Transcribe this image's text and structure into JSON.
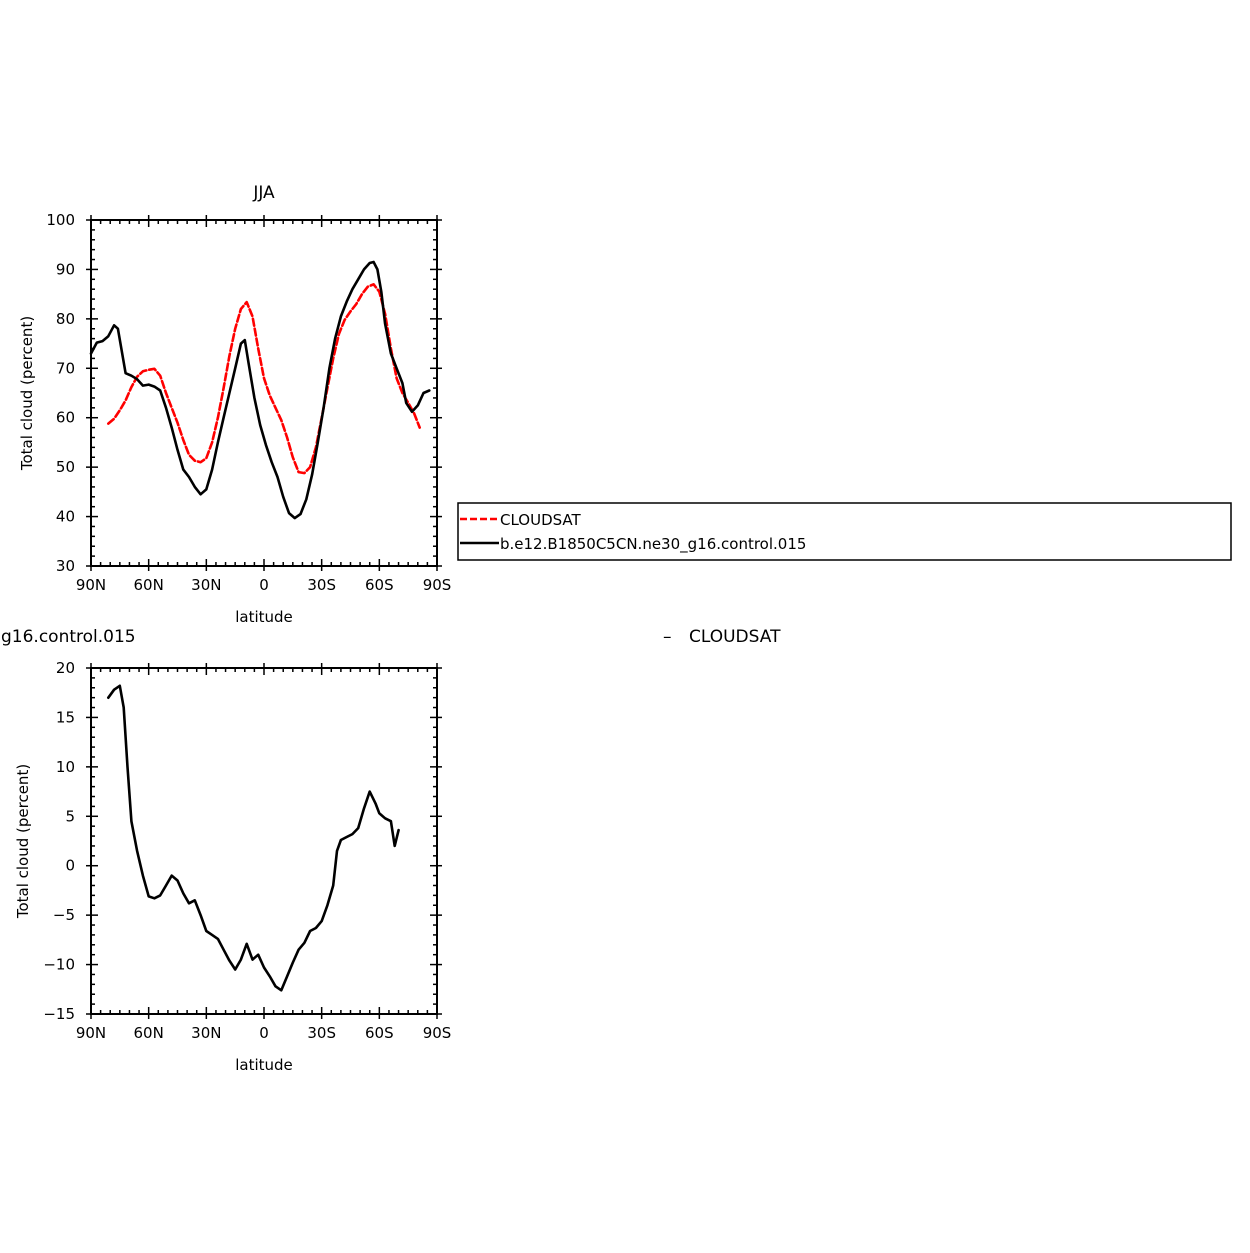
{
  "chart_data": [
    {
      "type": "line",
      "title": "JJA",
      "xlabel": "latitude",
      "ylabel": "Total cloud (percent)",
      "xlim": [
        -90,
        90
      ],
      "ylim": [
        30,
        100
      ],
      "x_ticks": [
        -90,
        -60,
        -30,
        0,
        30,
        60,
        90
      ],
      "x_tick_labels": [
        "90N",
        "60N",
        "30N",
        "0",
        "30S",
        "60S",
        "90S"
      ],
      "y_ticks": [
        30,
        40,
        50,
        60,
        70,
        80,
        90,
        100
      ],
      "y_tick_labels": [
        "30",
        "40",
        "50",
        "60",
        "70",
        "80",
        "90",
        "100"
      ],
      "legend_position": "right, outside plot",
      "series": [
        {
          "name": "CLOUDSAT",
          "color": "#ff0000",
          "dash": "dashed",
          "points": [
            [
              -81,
              58.8
            ],
            [
              -78,
              59.8
            ],
            [
              -75,
              61.5
            ],
            [
              -72,
              63.5
            ],
            [
              -69,
              66.2
            ],
            [
              -66,
              68.3
            ],
            [
              -63,
              69.4
            ],
            [
              -60,
              69.7
            ],
            [
              -57,
              69.9
            ],
            [
              -54,
              68.5
            ],
            [
              -51,
              65.0
            ],
            [
              -48,
              62.0
            ],
            [
              -45,
              59.0
            ],
            [
              -42,
              55.5
            ],
            [
              -39,
              52.5
            ],
            [
              -36,
              51.3
            ],
            [
              -33,
              51.0
            ],
            [
              -30,
              51.8
            ],
            [
              -27,
              55.0
            ],
            [
              -24,
              60.0
            ],
            [
              -21,
              66.0
            ],
            [
              -18,
              72.5
            ],
            [
              -15,
              78.0
            ],
            [
              -12,
              82.0
            ],
            [
              -9,
              83.4
            ],
            [
              -6,
              80.5
            ],
            [
              -3,
              74.0
            ],
            [
              0,
              68.0
            ],
            [
              3,
              64.5
            ],
            [
              6,
              62.0
            ],
            [
              9,
              59.5
            ],
            [
              12,
              56.0
            ],
            [
              15,
              52.0
            ],
            [
              18,
              49.0
            ],
            [
              21,
              48.8
            ],
            [
              24,
              50.0
            ],
            [
              27,
              54.0
            ],
            [
              30,
              60.0
            ],
            [
              33,
              66.0
            ],
            [
              36,
              72.0
            ],
            [
              39,
              77.0
            ],
            [
              42,
              79.8
            ],
            [
              45,
              81.5
            ],
            [
              48,
              83.0
            ],
            [
              51,
              85.0
            ],
            [
              54,
              86.5
            ],
            [
              57,
              87.0
            ],
            [
              60,
              85.5
            ],
            [
              63,
              81.0
            ],
            [
              66,
              74.0
            ],
            [
              69,
              68.0
            ],
            [
              72,
              65.0
            ],
            [
              75,
              63.0
            ],
            [
              78,
              61.0
            ],
            [
              81,
              58.0
            ]
          ]
        },
        {
          "name": "b.e12.B1850C5CN.ne30_g16.control.015",
          "color": "#000000",
          "dash": "solid",
          "points": [
            [
              -90,
              73.0
            ],
            [
              -87,
              75.2
            ],
            [
              -84,
              75.5
            ],
            [
              -81,
              76.5
            ],
            [
              -78,
              78.7
            ],
            [
              -76,
              78.0
            ],
            [
              -72,
              69.0
            ],
            [
              -69,
              68.5
            ],
            [
              -66,
              67.8
            ],
            [
              -63,
              66.5
            ],
            [
              -60,
              66.7
            ],
            [
              -57,
              66.3
            ],
            [
              -54,
              65.5
            ],
            [
              -51,
              62.0
            ],
            [
              -48,
              58.0
            ],
            [
              -45,
              53.5
            ],
            [
              -42,
              49.5
            ],
            [
              -39,
              48.0
            ],
            [
              -36,
              46.0
            ],
            [
              -33,
              44.5
            ],
            [
              -30,
              45.5
            ],
            [
              -27,
              49.5
            ],
            [
              -24,
              55.0
            ],
            [
              -21,
              60.0
            ],
            [
              -18,
              65.0
            ],
            [
              -15,
              70.0
            ],
            [
              -12,
              75.0
            ],
            [
              -10,
              75.7
            ],
            [
              -8,
              71.0
            ],
            [
              -5,
              64.0
            ],
            [
              -2,
              58.5
            ],
            [
              1,
              54.5
            ],
            [
              4,
              51.0
            ],
            [
              7,
              48.0
            ],
            [
              10,
              44.0
            ],
            [
              13,
              40.7
            ],
            [
              16,
              39.7
            ],
            [
              19,
              40.5
            ],
            [
              22,
              43.5
            ],
            [
              25,
              48.5
            ],
            [
              28,
              55.0
            ],
            [
              31,
              62.0
            ],
            [
              34,
              70.0
            ],
            [
              37,
              76.0
            ],
            [
              40,
              80.5
            ],
            [
              43,
              83.5
            ],
            [
              46,
              86.0
            ],
            [
              49,
              88.0
            ],
            [
              52,
              90.0
            ],
            [
              55,
              91.3
            ],
            [
              57,
              91.5
            ],
            [
              59,
              90.0
            ],
            [
              61,
              85.5
            ],
            [
              63,
              79.0
            ],
            [
              66,
              73.0
            ],
            [
              69,
              70.0
            ],
            [
              72,
              67.0
            ],
            [
              74,
              63.0
            ],
            [
              77,
              61.2
            ],
            [
              80,
              62.5
            ],
            [
              83,
              65.0
            ],
            [
              86,
              65.5
            ]
          ]
        }
      ]
    },
    {
      "type": "line",
      "title": "g16.control.015",
      "xlabel": "latitude",
      "ylabel": "Total cloud (percent)",
      "xlim": [
        -90,
        90
      ],
      "ylim": [
        -15,
        20
      ],
      "x_ticks": [
        -90,
        -60,
        -30,
        0,
        30,
        60,
        90
      ],
      "x_tick_labels": [
        "90N",
        "60N",
        "30N",
        "0",
        "30S",
        "60S",
        "90S"
      ],
      "y_ticks": [
        -15,
        -10,
        -5,
        0,
        5,
        10,
        15,
        20
      ],
      "y_tick_labels": [
        "−15",
        "−10",
        "−5",
        "0",
        "5",
        "10",
        "15",
        "20"
      ],
      "series": [
        {
          "color": "#000000",
          "dash": "solid",
          "points": [
            [
              -81,
              17.0
            ],
            [
              -78,
              17.8
            ],
            [
              -75,
              18.2
            ],
            [
              -73,
              16.0
            ],
            [
              -71,
              10.0
            ],
            [
              -69,
              4.5
            ],
            [
              -66,
              1.5
            ],
            [
              -63,
              -1.0
            ],
            [
              -60,
              -3.1
            ],
            [
              -57,
              -3.3
            ],
            [
              -54,
              -3.0
            ],
            [
              -51,
              -2.0
            ],
            [
              -48,
              -1.0
            ],
            [
              -45,
              -1.5
            ],
            [
              -42,
              -2.8
            ],
            [
              -39,
              -3.8
            ],
            [
              -36,
              -3.5
            ],
            [
              -33,
              -5.0
            ],
            [
              -30,
              -6.6
            ],
            [
              -27,
              -7.0
            ],
            [
              -24,
              -7.4
            ],
            [
              -21,
              -8.5
            ],
            [
              -18,
              -9.6
            ],
            [
              -15,
              -10.5
            ],
            [
              -12,
              -9.5
            ],
            [
              -9,
              -7.9
            ],
            [
              -6,
              -9.5
            ],
            [
              -3,
              -9.0
            ],
            [
              0,
              -10.3
            ],
            [
              3,
              -11.2
            ],
            [
              6,
              -12.2
            ],
            [
              9,
              -12.6
            ],
            [
              12,
              -11.2
            ],
            [
              15,
              -9.8
            ],
            [
              18,
              -8.5
            ],
            [
              21,
              -7.8
            ],
            [
              24,
              -6.6
            ],
            [
              27,
              -6.3
            ],
            [
              30,
              -5.6
            ],
            [
              33,
              -4.0
            ],
            [
              36,
              -2.0
            ],
            [
              38,
              1.5
            ],
            [
              40,
              2.6
            ],
            [
              43,
              2.9
            ],
            [
              46,
              3.2
            ],
            [
              49,
              3.8
            ],
            [
              52,
              5.8
            ],
            [
              55,
              7.5
            ],
            [
              58,
              6.3
            ],
            [
              60,
              5.3
            ],
            [
              63,
              4.8
            ],
            [
              66,
              4.5
            ],
            [
              68,
              2.0
            ],
            [
              70,
              3.6
            ]
          ]
        }
      ]
    },
    {
      "type": "legend",
      "title": "CLOUDSAT",
      "symbol": "–"
    }
  ]
}
